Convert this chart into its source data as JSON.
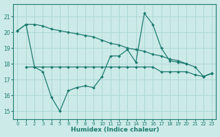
{
  "x": [
    0,
    1,
    2,
    3,
    4,
    5,
    6,
    7,
    8,
    9,
    10,
    11,
    12,
    13,
    14,
    15,
    16,
    17,
    18,
    19,
    20,
    21,
    22,
    23
  ],
  "line_top": [
    20.1,
    20.5,
    20.5,
    20.4,
    20.2,
    20.1,
    20.0,
    19.9,
    19.8,
    19.7,
    19.5,
    19.3,
    19.2,
    19.0,
    18.9,
    18.8,
    18.6,
    18.5,
    18.3,
    18.2,
    18.0,
    17.8,
    17.2,
    17.4
  ],
  "line_mid": [
    null,
    null,
    null,
    null,
    null,
    null,
    null,
    null,
    null,
    null,
    null,
    null,
    null,
    null,
    null,
    null,
    null,
    null,
    null,
    null,
    null,
    null,
    null,
    null
  ],
  "line_jagged": [
    20.1,
    20.5,
    17.8,
    17.5,
    15.9,
    15.0,
    16.3,
    16.5,
    16.6,
    16.5,
    17.2,
    18.5,
    18.5,
    18.9,
    18.1,
    21.2,
    20.5,
    19.0,
    18.2,
    18.1,
    18.0,
    null,
    17.2,
    17.4
  ],
  "line_flat": [
    null,
    17.8,
    17.8,
    17.8,
    17.8,
    17.8,
    17.8,
    17.8,
    17.8,
    17.8,
    17.8,
    17.8,
    17.8,
    17.8,
    17.8,
    17.8,
    17.8,
    17.5,
    17.5,
    17.5,
    17.5,
    17.3,
    17.2,
    17.4
  ],
  "ylim": [
    14.5,
    21.8
  ],
  "xlim": [
    -0.5,
    23.5
  ],
  "yticks": [
    15,
    16,
    17,
    18,
    19,
    20,
    21
  ],
  "xticks": [
    0,
    1,
    2,
    3,
    4,
    5,
    6,
    7,
    8,
    9,
    10,
    11,
    12,
    13,
    14,
    15,
    16,
    17,
    18,
    19,
    20,
    21,
    22,
    23
  ],
  "xlabel": "Humidex (Indice chaleur)",
  "color": "#1a7a6e",
  "bg_color": "#cceae8",
  "grid_color": "#aed8d5"
}
